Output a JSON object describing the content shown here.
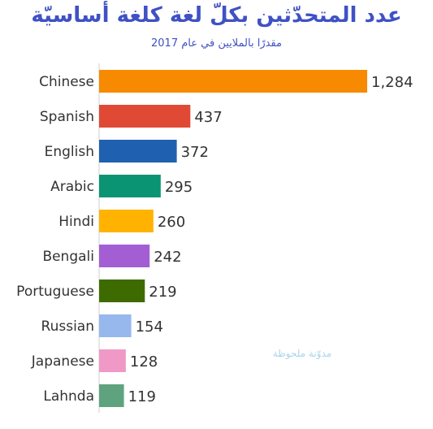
{
  "title": "عدد المتحدّثين بكلّ لغة كلغة أساسيّة",
  "subtitle": "مقدرًا بالملايين في عام 2017",
  "watermark": "مدوّنة ملحوظة",
  "chart_data": {
    "type": "bar",
    "orientation": "horizontal",
    "title": "عدد المتحدّثين بكلّ لغة كلغة أساسيّة",
    "subtitle": "مقدرًا بالملايين في عام 2017",
    "categories": [
      "Chinese",
      "Spanish",
      "English",
      "Arabic",
      "Hindi",
      "Bengali",
      "Portuguese",
      "Russian",
      "Japanese",
      "Lahnda"
    ],
    "values": [
      1284,
      437,
      372,
      295,
      260,
      242,
      219,
      154,
      128,
      119
    ],
    "value_labels": [
      "1,284",
      "437",
      "372",
      "295",
      "260",
      "242",
      "219",
      "154",
      "128",
      "119"
    ],
    "colors": [
      "#f78a00",
      "#e04a35",
      "#2060b0",
      "#0a9474",
      "#ffb300",
      "#a45ed4",
      "#3e6b00",
      "#96b8ec",
      "#f099c7",
      "#5fa37e"
    ],
    "xlim": [
      0,
      1284
    ],
    "grid": false,
    "legend": "none"
  }
}
